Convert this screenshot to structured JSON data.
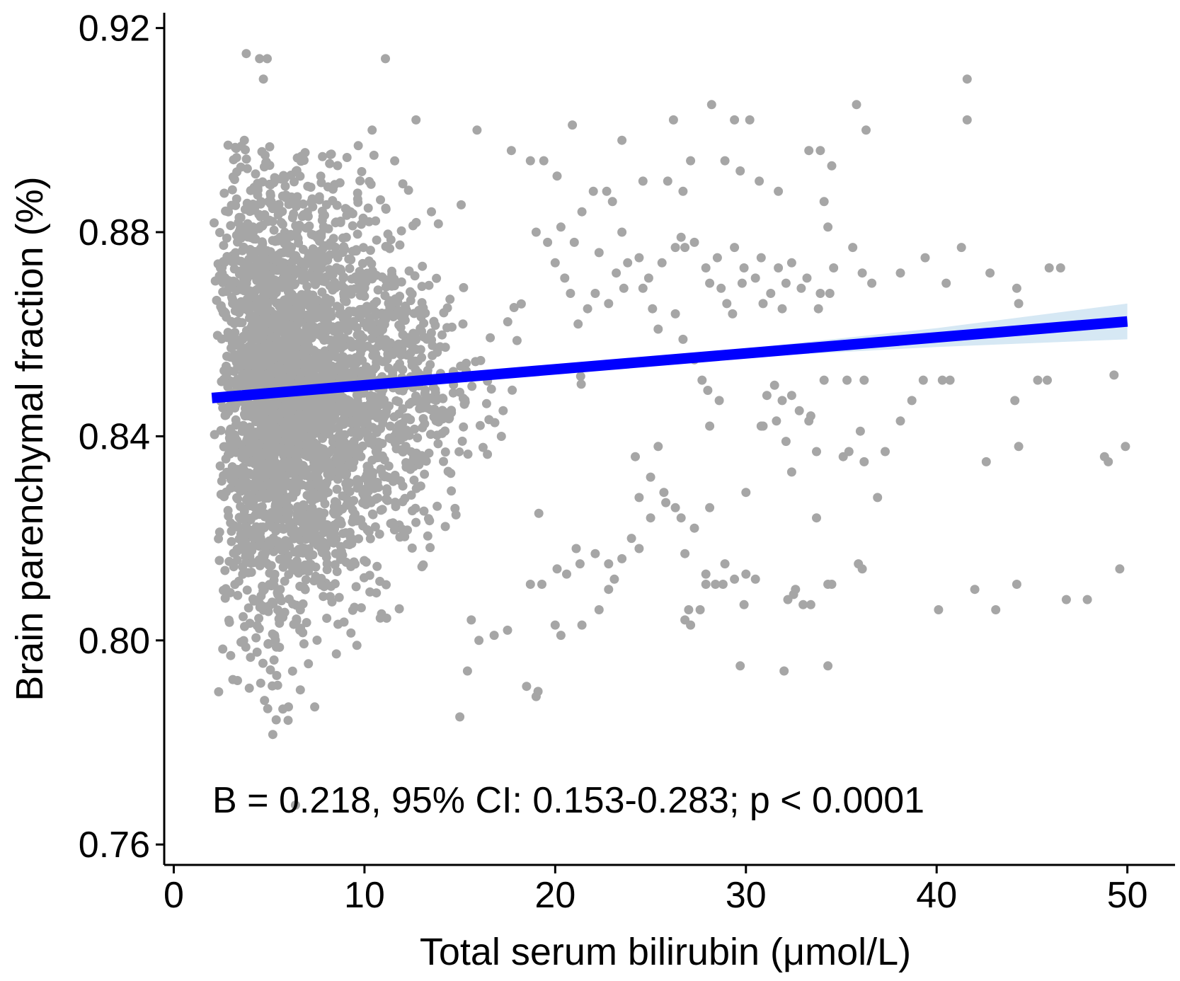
{
  "chart_data": {
    "type": "scatter",
    "xlabel": "Total serum bilirubin (μmol/L)",
    "ylabel": "Brain parenchymal fraction (%)",
    "xlim": [
      -0.5,
      52.5
    ],
    "ylim": [
      0.756,
      0.923
    ],
    "x_ticks": [
      0,
      10,
      20,
      30,
      40,
      50
    ],
    "x_tick_labels": [
      "0",
      "10",
      "20",
      "30",
      "40",
      "50"
    ],
    "y_ticks": [
      0.76,
      0.8,
      0.84,
      0.88,
      0.92
    ],
    "y_tick_labels": [
      "0.76",
      "0.80",
      "0.84",
      "0.88",
      "0.92"
    ],
    "annotation": "B = 0.218, 95% CI: 0.153-0.283; p < 0.0001",
    "grid": false,
    "legend": "none",
    "colors": {
      "points": "#a6a6a6",
      "fit_line": "#0000ff",
      "confidence_band": "#d6e8f4"
    },
    "fit_line": {
      "x": [
        2,
        50
      ],
      "y": [
        0.8475,
        0.8625
      ]
    },
    "confidence_band": {
      "x": [
        2,
        10,
        20,
        30,
        40,
        50
      ],
      "lower": [
        0.8468,
        0.8497,
        0.853,
        0.8555,
        0.8575,
        0.859
      ],
      "upper": [
        0.8482,
        0.8503,
        0.8538,
        0.8572,
        0.8612,
        0.866
      ]
    },
    "series": [
      {
        "points": [
          [
            3.8,
            0.915
          ],
          [
            4.5,
            0.914
          ],
          [
            4.9,
            0.914
          ],
          [
            4.7,
            0.91
          ],
          [
            11.1,
            0.914
          ],
          [
            3.7,
            0.898
          ],
          [
            10.4,
            0.9
          ],
          [
            12.7,
            0.902
          ],
          [
            15.9,
            0.9
          ],
          [
            20.9,
            0.901
          ],
          [
            26.2,
            0.902
          ],
          [
            28.2,
            0.905
          ],
          [
            29.4,
            0.902
          ],
          [
            30.2,
            0.902
          ],
          [
            35.8,
            0.905
          ],
          [
            36.3,
            0.9
          ],
          [
            41.6,
            0.91
          ],
          [
            41.6,
            0.902
          ],
          [
            23.5,
            0.898
          ],
          [
            27.1,
            0.894
          ],
          [
            28.9,
            0.894
          ],
          [
            24.6,
            0.89
          ],
          [
            25.9,
            0.89
          ],
          [
            26.7,
            0.888
          ],
          [
            29.7,
            0.892
          ],
          [
            30.7,
            0.89
          ],
          [
            31.7,
            0.888
          ],
          [
            33.3,
            0.896
          ],
          [
            33.9,
            0.896
          ],
          [
            34.5,
            0.893
          ],
          [
            34.1,
            0.886
          ],
          [
            34.3,
            0.881
          ],
          [
            35.6,
            0.877
          ],
          [
            36.1,
            0.872
          ],
          [
            36.6,
            0.87
          ],
          [
            38.1,
            0.872
          ],
          [
            39.4,
            0.875
          ],
          [
            40.5,
            0.87
          ],
          [
            41.3,
            0.877
          ],
          [
            42.8,
            0.872
          ],
          [
            44.2,
            0.869
          ],
          [
            44.3,
            0.866
          ],
          [
            45.9,
            0.873
          ],
          [
            46.5,
            0.873
          ],
          [
            49.3,
            0.852
          ],
          [
            49.9,
            0.838
          ],
          [
            48.8,
            0.836
          ],
          [
            49.0,
            0.835
          ],
          [
            49.6,
            0.814
          ],
          [
            47.9,
            0.808
          ],
          [
            46.8,
            0.808
          ],
          [
            44.2,
            0.811
          ],
          [
            43.1,
            0.806
          ],
          [
            42.0,
            0.81
          ],
          [
            40.1,
            0.806
          ],
          [
            44.3,
            0.838
          ],
          [
            42.6,
            0.835
          ],
          [
            44.1,
            0.847
          ],
          [
            45.3,
            0.851
          ],
          [
            45.8,
            0.851
          ],
          [
            39.3,
            0.851
          ],
          [
            40.3,
            0.851
          ],
          [
            40.7,
            0.851
          ],
          [
            38.7,
            0.847
          ],
          [
            38.1,
            0.843
          ],
          [
            37.3,
            0.837
          ],
          [
            36.2,
            0.835
          ],
          [
            35.4,
            0.837
          ],
          [
            36.0,
            0.841
          ],
          [
            35.1,
            0.836
          ],
          [
            36.2,
            0.851
          ],
          [
            35.3,
            0.851
          ],
          [
            34.1,
            0.851
          ],
          [
            36.9,
            0.828
          ],
          [
            34.3,
            0.811
          ],
          [
            34.5,
            0.811
          ],
          [
            35.9,
            0.815
          ],
          [
            36.1,
            0.814
          ],
          [
            33.7,
            0.837
          ],
          [
            33.7,
            0.824
          ],
          [
            33.4,
            0.844
          ],
          [
            32.4,
            0.848
          ],
          [
            32.8,
            0.845
          ],
          [
            33.3,
            0.843
          ],
          [
            32.4,
            0.833
          ],
          [
            31.6,
            0.843
          ],
          [
            31.9,
            0.847
          ],
          [
            32.1,
            0.839
          ],
          [
            30.8,
            0.842
          ],
          [
            30.9,
            0.842
          ],
          [
            31.1,
            0.848
          ],
          [
            31.5,
            0.85
          ],
          [
            30.0,
            0.829
          ],
          [
            30.0,
            0.813
          ],
          [
            29.4,
            0.812
          ],
          [
            28.8,
            0.811
          ],
          [
            28.4,
            0.811
          ],
          [
            27.9,
            0.811
          ],
          [
            27.9,
            0.813
          ],
          [
            28.9,
            0.815
          ],
          [
            29.9,
            0.807
          ],
          [
            30.5,
            0.812
          ],
          [
            32.5,
            0.809
          ],
          [
            32.2,
            0.808
          ],
          [
            32.6,
            0.81
          ],
          [
            33.0,
            0.807
          ],
          [
            33.4,
            0.807
          ],
          [
            29.7,
            0.795
          ],
          [
            32.0,
            0.794
          ],
          [
            34.3,
            0.795
          ],
          [
            27.0,
            0.806
          ],
          [
            27.6,
            0.806
          ],
          [
            26.8,
            0.804
          ],
          [
            27.1,
            0.803
          ],
          [
            26.8,
            0.817
          ],
          [
            27.3,
            0.822
          ],
          [
            28.1,
            0.826
          ],
          [
            26.6,
            0.824
          ],
          [
            26.3,
            0.826
          ],
          [
            25.8,
            0.827
          ],
          [
            25.7,
            0.829
          ],
          [
            24.4,
            0.828
          ],
          [
            25.0,
            0.824
          ],
          [
            18.5,
            0.791
          ],
          [
            19.0,
            0.789
          ],
          [
            19.1,
            0.79
          ],
          [
            15.0,
            0.785
          ],
          [
            15.4,
            0.794
          ],
          [
            16.0,
            0.8
          ],
          [
            16.8,
            0.801
          ],
          [
            17.5,
            0.802
          ],
          [
            15.6,
            0.804
          ],
          [
            20.0,
            0.803
          ],
          [
            20.3,
            0.801
          ],
          [
            21.4,
            0.803
          ],
          [
            22.3,
            0.806
          ],
          [
            22.8,
            0.81
          ],
          [
            23.1,
            0.812
          ],
          [
            22.8,
            0.815
          ],
          [
            21.3,
            0.815
          ],
          [
            20.6,
            0.813
          ],
          [
            20.1,
            0.814
          ],
          [
            19.3,
            0.811
          ],
          [
            18.7,
            0.811
          ],
          [
            21.1,
            0.818
          ],
          [
            22.1,
            0.817
          ],
          [
            23.5,
            0.816
          ],
          [
            24.4,
            0.818
          ],
          [
            24.0,
            0.82
          ],
          [
            25.4,
            0.838
          ],
          [
            25.0,
            0.832
          ],
          [
            24.2,
            0.836
          ],
          [
            28.1,
            0.842
          ],
          [
            28.0,
            0.849
          ],
          [
            28.6,
            0.847
          ],
          [
            27.7,
            0.851
          ],
          [
            27.3,
            0.855
          ],
          [
            26.7,
            0.859
          ],
          [
            26.3,
            0.864
          ],
          [
            25.4,
            0.861
          ],
          [
            25.1,
            0.865
          ],
          [
            24.6,
            0.869
          ],
          [
            24.9,
            0.871
          ],
          [
            25.6,
            0.874
          ],
          [
            26.3,
            0.877
          ],
          [
            26.6,
            0.879
          ],
          [
            26.8,
            0.877
          ],
          [
            27.3,
            0.878
          ],
          [
            27.9,
            0.873
          ],
          [
            28.1,
            0.87
          ],
          [
            28.7,
            0.869
          ],
          [
            28.5,
            0.875
          ],
          [
            29.8,
            0.87
          ],
          [
            29.4,
            0.877
          ],
          [
            29.9,
            0.873
          ],
          [
            30.5,
            0.871
          ],
          [
            30.8,
            0.875
          ],
          [
            31.3,
            0.868
          ],
          [
            31.7,
            0.873
          ],
          [
            32.1,
            0.87
          ],
          [
            32.4,
            0.874
          ],
          [
            32.9,
            0.869
          ],
          [
            33.2,
            0.871
          ],
          [
            33.9,
            0.868
          ],
          [
            34.6,
            0.873
          ],
          [
            34.4,
            0.868
          ],
          [
            33.8,
            0.865
          ],
          [
            31.9,
            0.865
          ],
          [
            30.9,
            0.866
          ],
          [
            29.3,
            0.864
          ],
          [
            29.0,
            0.866
          ],
          [
            23.8,
            0.874
          ],
          [
            23.2,
            0.872
          ],
          [
            23.6,
            0.869
          ],
          [
            22.8,
            0.866
          ],
          [
            22.1,
            0.868
          ],
          [
            21.7,
            0.865
          ],
          [
            21.2,
            0.862
          ],
          [
            20.8,
            0.868
          ],
          [
            20.5,
            0.871
          ],
          [
            20.0,
            0.874
          ],
          [
            19.6,
            0.878
          ],
          [
            19.0,
            0.88
          ],
          [
            20.3,
            0.881
          ],
          [
            21.4,
            0.884
          ],
          [
            22.0,
            0.888
          ],
          [
            22.7,
            0.888
          ],
          [
            23.0,
            0.886
          ],
          [
            21.0,
            0.878
          ],
          [
            22.3,
            0.876
          ],
          [
            23.5,
            0.88
          ],
          [
            24.4,
            0.875
          ],
          [
            17.7,
            0.896
          ],
          [
            18.7,
            0.894
          ],
          [
            19.4,
            0.894
          ],
          [
            20.1,
            0.891
          ]
        ]
      }
    ]
  }
}
